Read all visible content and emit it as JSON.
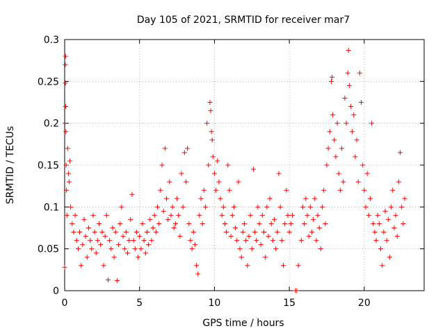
{
  "chart_data": {
    "type": "scatter",
    "title": "Day 105 of 2021, SRMTID for receiver mar7",
    "xlabel": "GPS time / hours",
    "ylabel": "SRMTID / TECUs",
    "xlim": [
      0,
      24
    ],
    "ylim": [
      0,
      0.3
    ],
    "x_ticks": [
      0,
      5,
      10,
      15,
      20
    ],
    "x_tick_labels": [
      "0",
      "5",
      "10",
      "15",
      "20"
    ],
    "y_ticks": [
      0,
      0.05,
      0.1,
      0.15,
      0.2,
      0.25,
      0.3
    ],
    "y_tick_labels": [
      "0",
      "0.05",
      "0.1",
      "0.15",
      "0.2",
      "0.25",
      "0.3"
    ],
    "grid": true,
    "marker": "plus",
    "color": "#ff0000",
    "series": [
      {
        "name": "SRMTID",
        "points": [
          [
            0.0,
            0.028
          ],
          [
            0.02,
            0.2
          ],
          [
            0.04,
            0.27
          ],
          [
            0.05,
            0.248
          ],
          [
            0.06,
            0.28
          ],
          [
            0.07,
            0.22
          ],
          [
            0.08,
            0.19
          ],
          [
            0.1,
            0.15
          ],
          [
            0.12,
            0.12
          ],
          [
            0.15,
            0.09
          ],
          [
            0.2,
            0.17
          ],
          [
            0.25,
            0.14
          ],
          [
            0.3,
            0.13
          ],
          [
            0.35,
            0.155
          ],
          [
            0.4,
            0.1
          ],
          [
            0.5,
            0.08
          ],
          [
            0.6,
            0.07
          ],
          [
            0.7,
            0.09
          ],
          [
            0.8,
            0.06
          ],
          [
            0.9,
            0.05
          ],
          [
            1.0,
            0.07
          ],
          [
            1.1,
            0.03
          ],
          [
            1.2,
            0.055
          ],
          [
            1.3,
            0.085
          ],
          [
            1.4,
            0.065
          ],
          [
            1.5,
            0.04
          ],
          [
            1.6,
            0.075
          ],
          [
            1.7,
            0.06
          ],
          [
            1.8,
            0.05
          ],
          [
            1.9,
            0.09
          ],
          [
            2.0,
            0.07
          ],
          [
            2.1,
            0.045
          ],
          [
            2.2,
            0.06
          ],
          [
            2.3,
            0.08
          ],
          [
            2.4,
            0.055
          ],
          [
            2.5,
            0.07
          ],
          [
            2.6,
            0.03
          ],
          [
            2.7,
            0.065
          ],
          [
            2.8,
            0.09
          ],
          [
            2.9,
            0.013
          ],
          [
            3.0,
            0.06
          ],
          [
            3.1,
            0.05
          ],
          [
            3.2,
            0.075
          ],
          [
            3.3,
            0.04
          ],
          [
            3.4,
            0.07
          ],
          [
            3.5,
            0.012
          ],
          [
            3.6,
            0.055
          ],
          [
            3.7,
            0.08
          ],
          [
            3.8,
            0.1
          ],
          [
            3.9,
            0.065
          ],
          [
            4.0,
            0.05
          ],
          [
            4.1,
            0.07
          ],
          [
            4.2,
            0.045
          ],
          [
            4.3,
            0.06
          ],
          [
            4.4,
            0.085
          ],
          [
            4.5,
            0.115
          ],
          [
            4.6,
            0.06
          ],
          [
            4.7,
            0.05
          ],
          [
            4.8,
            0.07
          ],
          [
            4.9,
            0.04
          ],
          [
            5.0,
            0.065
          ],
          [
            5.1,
            0.05
          ],
          [
            5.2,
            0.08
          ],
          [
            5.3,
            0.06
          ],
          [
            5.4,
            0.045
          ],
          [
            5.5,
            0.07
          ],
          [
            5.6,
            0.055
          ],
          [
            5.7,
            0.085
          ],
          [
            5.8,
            0.06
          ],
          [
            5.9,
            0.075
          ],
          [
            6.0,
            0.09
          ],
          [
            6.1,
            0.07
          ],
          [
            6.2,
            0.1
          ],
          [
            6.3,
            0.08
          ],
          [
            6.4,
            0.12
          ],
          [
            6.5,
            0.15
          ],
          [
            6.6,
            0.095
          ],
          [
            6.7,
            0.17
          ],
          [
            6.8,
            0.11
          ],
          [
            6.9,
            0.085
          ],
          [
            7.0,
            0.13
          ],
          [
            7.1,
            0.09
          ],
          [
            7.2,
            0.1
          ],
          [
            7.3,
            0.075
          ],
          [
            7.4,
            0.08
          ],
          [
            7.5,
            0.11
          ],
          [
            7.6,
            0.09
          ],
          [
            7.7,
            0.065
          ],
          [
            7.8,
            0.14
          ],
          [
            7.9,
            0.1
          ],
          [
            8.0,
            0.165
          ],
          [
            8.1,
            0.13
          ],
          [
            8.2,
            0.17
          ],
          [
            8.3,
            0.08
          ],
          [
            8.4,
            0.06
          ],
          [
            8.5,
            0.05
          ],
          [
            8.6,
            0.07
          ],
          [
            8.7,
            0.055
          ],
          [
            8.8,
            0.03
          ],
          [
            8.9,
            0.02
          ],
          [
            9.0,
            0.09
          ],
          [
            9.1,
            0.11
          ],
          [
            9.2,
            0.08
          ],
          [
            9.3,
            0.12
          ],
          [
            9.4,
            0.1
          ],
          [
            9.5,
            0.2
          ],
          [
            9.6,
            0.15
          ],
          [
            9.7,
            0.225
          ],
          [
            9.75,
            0.215
          ],
          [
            9.8,
            0.19
          ],
          [
            9.85,
            0.18
          ],
          [
            9.9,
            0.16
          ],
          [
            10.0,
            0.14
          ],
          [
            10.1,
            0.12
          ],
          [
            10.2,
            0.155
          ],
          [
            10.3,
            0.13
          ],
          [
            10.4,
            0.11
          ],
          [
            10.5,
            0.09
          ],
          [
            10.6,
            0.1
          ],
          [
            10.7,
            0.08
          ],
          [
            10.8,
            0.07
          ],
          [
            10.9,
            0.15
          ],
          [
            11.0,
            0.12
          ],
          [
            11.1,
            0.065
          ],
          [
            11.2,
            0.09
          ],
          [
            11.3,
            0.1
          ],
          [
            11.4,
            0.075
          ],
          [
            11.5,
            0.06
          ],
          [
            11.6,
            0.13
          ],
          [
            11.7,
            0.05
          ],
          [
            11.8,
            0.04
          ],
          [
            11.9,
            0.07
          ],
          [
            12.0,
            0.08
          ],
          [
            12.1,
            0.06
          ],
          [
            12.2,
            0.03
          ],
          [
            12.3,
            0.065
          ],
          [
            12.4,
            0.09
          ],
          [
            12.5,
            0.05
          ],
          [
            12.6,
            0.145
          ],
          [
            12.7,
            0.07
          ],
          [
            12.8,
            0.06
          ],
          [
            12.9,
            0.1
          ],
          [
            13.0,
            0.08
          ],
          [
            13.1,
            0.055
          ],
          [
            13.2,
            0.09
          ],
          [
            13.3,
            0.07
          ],
          [
            13.4,
            0.04
          ],
          [
            13.5,
            0.1
          ],
          [
            13.6,
            0.065
          ],
          [
            13.7,
            0.11
          ],
          [
            13.8,
            0.08
          ],
          [
            13.9,
            0.06
          ],
          [
            14.0,
            0.085
          ],
          [
            14.1,
            0.05
          ],
          [
            14.2,
            0.07
          ],
          [
            14.3,
            0.14
          ],
          [
            14.4,
            0.1
          ],
          [
            14.5,
            0.06
          ],
          [
            14.6,
            0.03
          ],
          [
            14.7,
            0.08
          ],
          [
            14.8,
            0.12
          ],
          [
            14.9,
            0.09
          ],
          [
            15.0,
            0.07
          ],
          [
            15.1,
            0.08
          ],
          [
            15.2,
            0.09
          ],
          [
            15.4,
            0.0
          ],
          [
            15.5,
            0.0
          ],
          [
            15.6,
            0.03
          ],
          [
            15.8,
            0.06
          ],
          [
            15.9,
            0.1
          ],
          [
            16.0,
            0.08
          ],
          [
            16.1,
            0.11
          ],
          [
            16.2,
            0.09
          ],
          [
            16.3,
            0.065
          ],
          [
            16.4,
            0.1
          ],
          [
            16.5,
            0.07
          ],
          [
            16.6,
            0.085
          ],
          [
            16.7,
            0.11
          ],
          [
            16.8,
            0.06
          ],
          [
            16.9,
            0.09
          ],
          [
            17.0,
            0.075
          ],
          [
            17.1,
            0.05
          ],
          [
            17.2,
            0.1
          ],
          [
            17.3,
            0.12
          ],
          [
            17.4,
            0.08
          ],
          [
            17.5,
            0.15
          ],
          [
            17.6,
            0.17
          ],
          [
            17.7,
            0.19
          ],
          [
            17.8,
            0.25
          ],
          [
            17.85,
            0.255
          ],
          [
            17.9,
            0.21
          ],
          [
            18.0,
            0.18
          ],
          [
            18.1,
            0.16
          ],
          [
            18.2,
            0.2
          ],
          [
            18.3,
            0.14
          ],
          [
            18.4,
            0.12
          ],
          [
            18.5,
            0.17
          ],
          [
            18.6,
            0.13
          ],
          [
            18.7,
            0.23
          ],
          [
            18.8,
            0.2
          ],
          [
            18.9,
            0.26
          ],
          [
            18.95,
            0.287
          ],
          [
            19.0,
            0.245
          ],
          [
            19.1,
            0.22
          ],
          [
            19.2,
            0.19
          ],
          [
            19.3,
            0.21
          ],
          [
            19.4,
            0.16
          ],
          [
            19.5,
            0.18
          ],
          [
            19.6,
            0.13
          ],
          [
            19.7,
            0.26
          ],
          [
            19.8,
            0.225
          ],
          [
            19.9,
            0.15
          ],
          [
            20.0,
            0.12
          ],
          [
            20.1,
            0.1
          ],
          [
            20.2,
            0.14
          ],
          [
            20.3,
            0.09
          ],
          [
            20.4,
            0.11
          ],
          [
            20.5,
            0.2
          ],
          [
            20.6,
            0.08
          ],
          [
            20.7,
            0.07
          ],
          [
            20.8,
            0.06
          ],
          [
            20.9,
            0.09
          ],
          [
            21.0,
            0.08
          ],
          [
            21.1,
            0.05
          ],
          [
            21.2,
            0.03
          ],
          [
            21.3,
            0.07
          ],
          [
            21.4,
            0.095
          ],
          [
            21.5,
            0.06
          ],
          [
            21.6,
            0.085
          ],
          [
            21.7,
            0.04
          ],
          [
            21.8,
            0.1
          ],
          [
            21.9,
            0.12
          ],
          [
            22.0,
            0.075
          ],
          [
            22.1,
            0.09
          ],
          [
            22.2,
            0.065
          ],
          [
            22.3,
            0.13
          ],
          [
            22.4,
            0.165
          ],
          [
            22.5,
            0.1
          ],
          [
            22.6,
            0.08
          ],
          [
            22.7,
            0.11
          ]
        ]
      }
    ]
  }
}
